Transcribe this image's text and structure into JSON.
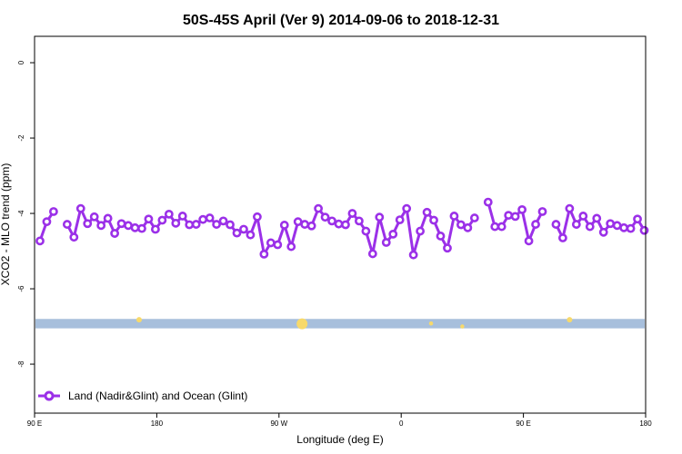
{
  "chart_data": {
    "type": "line",
    "title": "50S-45S April (Ver 9)   2014-09-06 to 2018-12-31",
    "xlabel": "Longitude (deg E)",
    "ylabel": "XCO2 - MLO trend (ppm)",
    "xlim": [
      90,
      540
    ],
    "ylim": [
      -9.3,
      0.7
    ],
    "x_ticks": [
      {
        "value": 90,
        "label": "90 E"
      },
      {
        "value": 180,
        "label": "180"
      },
      {
        "value": 270,
        "label": "90 W"
      },
      {
        "value": 360,
        "label": "0"
      },
      {
        "value": 450,
        "label": "90 E"
      },
      {
        "value": 540,
        "label": "180"
      }
    ],
    "y_ticks": [
      {
        "value": 0,
        "label": "0"
      },
      {
        "value": -2,
        "label": "-2"
      },
      {
        "value": -4,
        "label": "-4"
      },
      {
        "value": -6,
        "label": "-6"
      },
      {
        "value": -8,
        "label": "-8"
      }
    ],
    "grid": false,
    "legend_position": "bottom-left",
    "series": [
      {
        "name": "Land (Nadir&Glint) and Ocean (Glint)",
        "color": "#9b30e8",
        "segments": [
          [
            [
              94,
              -4.73
            ],
            [
              99,
              -4.22
            ],
            [
              104,
              -3.95
            ]
          ],
          [
            [
              114,
              -4.29
            ],
            [
              119,
              -4.63
            ],
            [
              124,
              -3.87
            ],
            [
              129,
              -4.27
            ],
            [
              134,
              -4.09
            ],
            [
              139,
              -4.32
            ],
            [
              144,
              -4.13
            ],
            [
              149,
              -4.53
            ],
            [
              154,
              -4.27
            ],
            [
              159,
              -4.32
            ],
            [
              164,
              -4.38
            ],
            [
              169,
              -4.4
            ],
            [
              174,
              -4.15
            ],
            [
              179,
              -4.42
            ],
            [
              184,
              -4.18
            ],
            [
              189,
              -4.02
            ],
            [
              194,
              -4.26
            ],
            [
              199,
              -4.07
            ],
            [
              204,
              -4.3
            ],
            [
              209,
              -4.29
            ],
            [
              214,
              -4.16
            ],
            [
              219,
              -4.12
            ],
            [
              224,
              -4.29
            ],
            [
              229,
              -4.2
            ],
            [
              234,
              -4.3
            ],
            [
              239,
              -4.52
            ],
            [
              244,
              -4.42
            ],
            [
              249,
              -4.57
            ],
            [
              254,
              -4.09
            ],
            [
              259,
              -5.08
            ],
            [
              264,
              -4.78
            ],
            [
              269,
              -4.83
            ],
            [
              274,
              -4.31
            ],
            [
              279,
              -4.88
            ],
            [
              284,
              -4.22
            ],
            [
              289,
              -4.29
            ],
            [
              294,
              -4.33
            ],
            [
              299,
              -3.87
            ],
            [
              304,
              -4.1
            ],
            [
              309,
              -4.2
            ],
            [
              314,
              -4.28
            ],
            [
              319,
              -4.3
            ],
            [
              324,
              -4.0
            ],
            [
              329,
              -4.2
            ],
            [
              334,
              -4.47
            ],
            [
              339,
              -5.07
            ],
            [
              344,
              -4.1
            ],
            [
              349,
              -4.77
            ],
            [
              354,
              -4.55
            ],
            [
              359,
              -4.17
            ],
            [
              364,
              -3.87
            ],
            [
              369,
              -5.1
            ],
            [
              374,
              -4.47
            ],
            [
              379,
              -3.97
            ],
            [
              384,
              -4.18
            ],
            [
              389,
              -4.6
            ],
            [
              394,
              -4.92
            ],
            [
              399,
              -4.07
            ],
            [
              404,
              -4.3
            ],
            [
              409,
              -4.38
            ],
            [
              414,
              -4.12
            ]
          ],
          [
            [
              424,
              -3.7
            ],
            [
              429,
              -4.35
            ],
            [
              434,
              -4.35
            ],
            [
              439,
              -4.05
            ],
            [
              444,
              -4.08
            ],
            [
              449,
              -3.9
            ],
            [
              454,
              -4.73
            ],
            [
              459,
              -4.29
            ],
            [
              464,
              -3.95
            ]
          ],
          [
            [
              474,
              -4.29
            ],
            [
              479,
              -4.65
            ],
            [
              484,
              -3.87
            ],
            [
              489,
              -4.29
            ],
            [
              494,
              -4.07
            ],
            [
              499,
              -4.35
            ],
            [
              504,
              -4.13
            ],
            [
              509,
              -4.5
            ],
            [
              514,
              -4.27
            ],
            [
              519,
              -4.32
            ],
            [
              524,
              -4.38
            ],
            [
              529,
              -4.4
            ],
            [
              534,
              -4.15
            ],
            [
              539,
              -4.45
            ]
          ]
        ]
      }
    ],
    "band": {
      "y_low": -7.05,
      "y_high": -6.8,
      "color": "#a7bfdc",
      "marker_color": "#f7d96b",
      "markers": [
        {
          "x": 167,
          "y": -6.82,
          "size": 1
        },
        {
          "x": 287,
          "y": -6.93,
          "size": 3
        },
        {
          "x": 484,
          "y": -6.82,
          "size": 1
        },
        {
          "x": 382,
          "y": -6.92,
          "size": 0.5
        },
        {
          "x": 405,
          "y": -7.0,
          "size": 0.5
        }
      ]
    }
  }
}
